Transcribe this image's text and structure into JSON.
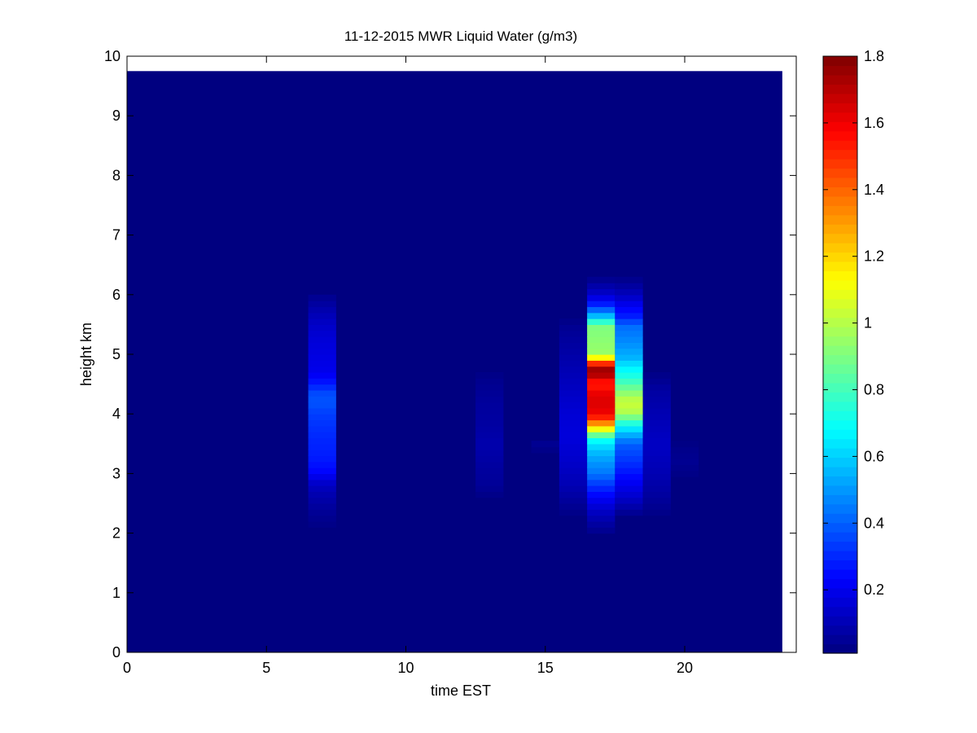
{
  "chart_data": {
    "type": "heatmap",
    "title": "11-12-2015 MWR Liquid Water (g/m3)",
    "xlabel": "time EST",
    "ylabel": "height km",
    "xlim": [
      0,
      24
    ],
    "ylim": [
      0,
      10
    ],
    "x_ticks": [
      0,
      5,
      10,
      15,
      20
    ],
    "y_ticks": [
      0,
      1,
      2,
      3,
      4,
      5,
      6,
      7,
      8,
      9,
      10
    ],
    "data_extent": {
      "x": [
        0,
        23.5
      ],
      "y": [
        0,
        9.75
      ]
    },
    "colormap": "jet",
    "colorbar": {
      "range": [
        0.01,
        1.8
      ],
      "ticks": [
        0.2,
        0.4,
        0.6,
        0.8,
        1,
        1.2,
        1.4,
        1.6,
        1.8
      ],
      "tick_labels": [
        "0.2",
        "0.4",
        "0.6",
        "0.8",
        "1",
        "1.2",
        "1.4",
        "1.6",
        "1.8"
      ]
    },
    "background_value": 0.01,
    "layer_thickness_km": 0.1,
    "columns": [
      {
        "x0": 6.5,
        "x1": 7.5,
        "profile": [
          [
            2.1,
            0.02
          ],
          [
            2.3,
            0.04
          ],
          [
            2.5,
            0.07
          ],
          [
            2.7,
            0.1
          ],
          [
            2.9,
            0.16
          ],
          [
            3.0,
            0.23
          ],
          [
            3.2,
            0.27
          ],
          [
            3.4,
            0.29
          ],
          [
            3.6,
            0.3
          ],
          [
            3.8,
            0.32
          ],
          [
            4.0,
            0.34
          ],
          [
            4.1,
            0.36
          ],
          [
            4.2,
            0.38
          ],
          [
            4.35,
            0.36
          ],
          [
            4.5,
            0.28
          ],
          [
            4.7,
            0.2
          ],
          [
            5.0,
            0.18
          ],
          [
            5.3,
            0.16
          ],
          [
            5.6,
            0.12
          ],
          [
            5.8,
            0.08
          ],
          [
            6.0,
            0.03
          ]
        ]
      },
      {
        "x0": 12.5,
        "x1": 13.5,
        "profile": [
          [
            2.6,
            0.02
          ],
          [
            2.8,
            0.05
          ],
          [
            3.2,
            0.07
          ],
          [
            3.5,
            0.09
          ],
          [
            3.8,
            0.07
          ],
          [
            4.2,
            0.06
          ],
          [
            4.5,
            0.04
          ],
          [
            4.7,
            0.02
          ]
        ]
      },
      {
        "x0": 14.5,
        "x1": 15.5,
        "profile": [
          [
            3.35,
            0.02
          ],
          [
            3.5,
            0.04
          ],
          [
            3.6,
            0.02
          ]
        ]
      },
      {
        "x0": 15.5,
        "x1": 16.5,
        "profile": [
          [
            2.3,
            0.02
          ],
          [
            2.5,
            0.05
          ],
          [
            2.8,
            0.1
          ],
          [
            3.2,
            0.14
          ],
          [
            3.6,
            0.17
          ],
          [
            4.0,
            0.16
          ],
          [
            4.5,
            0.12
          ],
          [
            5.0,
            0.08
          ],
          [
            5.4,
            0.05
          ],
          [
            5.6,
            0.02
          ]
        ]
      },
      {
        "x0": 16.5,
        "x1": 17.5,
        "profile": [
          [
            2.0,
            0.03
          ],
          [
            2.2,
            0.08
          ],
          [
            2.4,
            0.14
          ],
          [
            2.6,
            0.22
          ],
          [
            2.8,
            0.32
          ],
          [
            3.0,
            0.44
          ],
          [
            3.2,
            0.5
          ],
          [
            3.4,
            0.58
          ],
          [
            3.6,
            0.72
          ],
          [
            3.7,
            1.0
          ],
          [
            3.8,
            1.22
          ],
          [
            3.9,
            1.45
          ],
          [
            4.0,
            1.6
          ],
          [
            4.2,
            1.64
          ],
          [
            4.4,
            1.6
          ],
          [
            4.5,
            1.5
          ],
          [
            4.6,
            1.62
          ],
          [
            4.7,
            1.78
          ],
          [
            4.8,
            1.7
          ],
          [
            4.9,
            1.3
          ],
          [
            5.0,
            0.95
          ],
          [
            5.3,
            0.92
          ],
          [
            5.5,
            0.9
          ],
          [
            5.6,
            0.62
          ],
          [
            5.7,
            0.5
          ],
          [
            5.8,
            0.32
          ],
          [
            6.0,
            0.15
          ],
          [
            6.2,
            0.06
          ],
          [
            6.3,
            0.02
          ]
        ]
      },
      {
        "x0": 17.5,
        "x1": 18.5,
        "profile": [
          [
            2.3,
            0.03
          ],
          [
            2.6,
            0.14
          ],
          [
            3.0,
            0.26
          ],
          [
            3.2,
            0.32
          ],
          [
            3.5,
            0.4
          ],
          [
            3.7,
            0.58
          ],
          [
            3.9,
            0.8
          ],
          [
            4.0,
            0.98
          ],
          [
            4.2,
            1.04
          ],
          [
            4.4,
            0.9
          ],
          [
            4.6,
            0.75
          ],
          [
            4.8,
            0.65
          ],
          [
            4.95,
            0.55
          ],
          [
            5.2,
            0.48
          ],
          [
            5.5,
            0.42
          ],
          [
            5.6,
            0.3
          ],
          [
            5.8,
            0.22
          ],
          [
            6.0,
            0.12
          ],
          [
            6.2,
            0.05
          ],
          [
            6.3,
            0.02
          ]
        ]
      },
      {
        "x0": 18.5,
        "x1": 19.5,
        "profile": [
          [
            2.3,
            0.02
          ],
          [
            2.6,
            0.06
          ],
          [
            3.0,
            0.1
          ],
          [
            3.5,
            0.13
          ],
          [
            4.0,
            0.1
          ],
          [
            4.4,
            0.07
          ],
          [
            4.7,
            0.02
          ]
        ]
      },
      {
        "x0": 19.5,
        "x1": 20.5,
        "profile": [
          [
            2.95,
            0.02
          ],
          [
            3.2,
            0.04
          ],
          [
            3.4,
            0.03
          ],
          [
            3.6,
            0.01
          ]
        ]
      }
    ]
  }
}
